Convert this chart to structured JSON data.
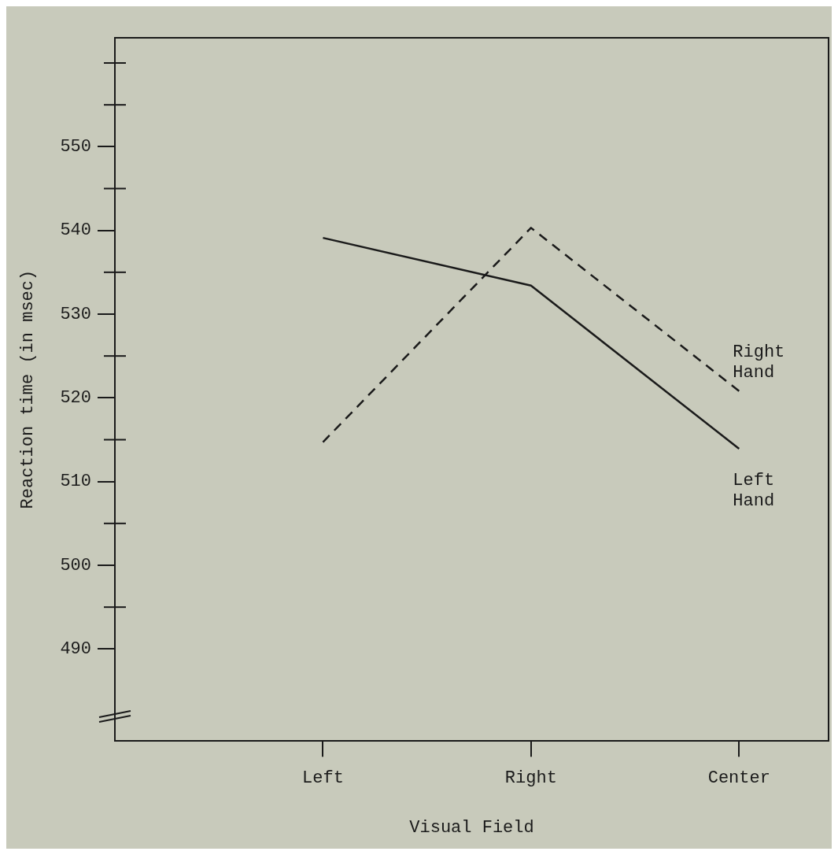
{
  "chart_data": {
    "type": "line",
    "xlabel": "Visual Field",
    "ylabel": "Reaction time (in msec)",
    "categories": [
      "Left",
      "Right",
      "Center"
    ],
    "series": [
      {
        "name": "Left Hand",
        "color": "#1a1a1a",
        "line_style": "solid",
        "values": [
          539.1,
          533.4,
          513.9
        ]
      },
      {
        "name": "Right Hand",
        "color": "#1a1a1a",
        "line_style": "dashed",
        "values": [
          514.7,
          540.3,
          520.8
        ]
      }
    ],
    "ylim": [
      479,
      563
    ],
    "yticks": [
      490,
      500,
      510,
      520,
      530,
      540,
      550
    ],
    "grid": false,
    "legend": false,
    "marker": "none"
  }
}
